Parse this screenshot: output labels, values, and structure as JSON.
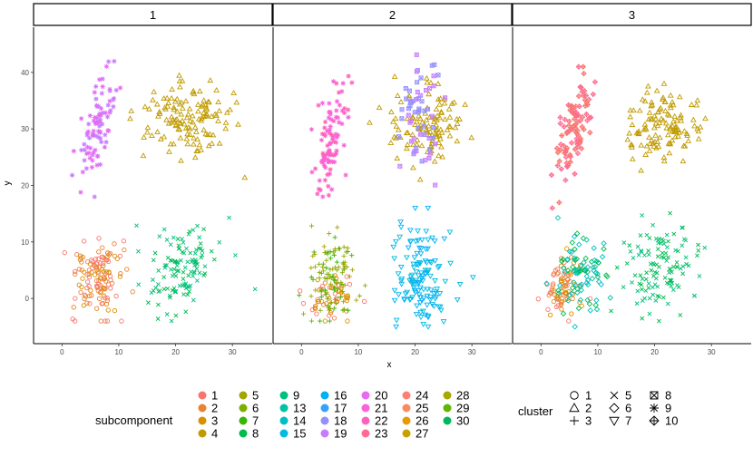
{
  "chart_data": {
    "type": "scatter",
    "facet_variable": "panel",
    "panels": [
      "1",
      "2",
      "3"
    ],
    "xlabel": "x",
    "ylabel": "y",
    "xlim": [
      -5,
      37
    ],
    "ylim": [
      -8,
      48
    ],
    "xticks": [
      0,
      10,
      20,
      30
    ],
    "yticks": [
      0,
      10,
      20,
      30,
      40
    ],
    "grid": false,
    "legend_position": "bottom",
    "color_legend": {
      "title": "subcomponent",
      "entries": [
        {
          "label": "1",
          "color": "#F8766D"
        },
        {
          "label": "2",
          "color": "#EA8331"
        },
        {
          "label": "3",
          "color": "#D89000"
        },
        {
          "label": "4",
          "color": "#C09B00"
        },
        {
          "label": "5",
          "color": "#A3A500"
        },
        {
          "label": "6",
          "color": "#7CAE00"
        },
        {
          "label": "7",
          "color": "#39B600"
        },
        {
          "label": "8",
          "color": "#00BB4E"
        },
        {
          "label": "9",
          "color": "#00BF7D"
        },
        {
          "label": "13",
          "color": "#00C1A3"
        },
        {
          "label": "14",
          "color": "#00BFC4"
        },
        {
          "label": "15",
          "color": "#00BAE0"
        },
        {
          "label": "16",
          "color": "#00B0F6"
        },
        {
          "label": "17",
          "color": "#35A2FF"
        },
        {
          "label": "18",
          "color": "#9590FF"
        },
        {
          "label": "19",
          "color": "#C77CFF"
        },
        {
          "label": "20",
          "color": "#E76BF3"
        },
        {
          "label": "21",
          "color": "#FA62DB"
        },
        {
          "label": "22",
          "color": "#FF62BC"
        },
        {
          "label": "23",
          "color": "#FF6C91"
        },
        {
          "label": "24",
          "color": "#FF7F73"
        },
        {
          "label": "25",
          "color": "#F98B62"
        },
        {
          "label": "26",
          "color": "#E89A00"
        },
        {
          "label": "27",
          "color": "#C6A100"
        },
        {
          "label": "28",
          "color": "#A7A900"
        },
        {
          "label": "29",
          "color": "#5FB500"
        },
        {
          "label": "30",
          "color": "#00B85A"
        }
      ]
    },
    "shape_legend": {
      "title": "cluster",
      "entries": [
        {
          "label": "1",
          "shape": "circle"
        },
        {
          "label": "2",
          "shape": "triangle"
        },
        {
          "label": "3",
          "shape": "plus"
        },
        {
          "label": "5",
          "shape": "cross"
        },
        {
          "label": "6",
          "shape": "diamond"
        },
        {
          "label": "7",
          "shape": "triangle-down"
        },
        {
          "label": "8",
          "shape": "square-cross"
        },
        {
          "label": "9",
          "shape": "asterisk"
        },
        {
          "label": "10",
          "shape": "diamond-plus"
        }
      ]
    },
    "clusters": [
      {
        "panel": "1",
        "cluster": "1",
        "shape": "circle",
        "color": "#D89000",
        "colors": [
          "#F8766D",
          "#EA8331",
          "#D89000"
        ],
        "center": [
          6,
          3
        ],
        "sd": [
          2.2,
          3.5
        ],
        "n": 130,
        "range_x": [
          -1,
          13
        ],
        "range_y": [
          -4,
          16
        ]
      },
      {
        "panel": "1",
        "cluster": "2",
        "shape": "triangle",
        "color": "#C09B00",
        "center": [
          22,
          31
        ],
        "sd": [
          3.5,
          3.5
        ],
        "n": 130,
        "range_x": [
          12,
          35
        ],
        "range_y": [
          18,
          43
        ]
      },
      {
        "panel": "1",
        "cluster": "5",
        "shape": "cross",
        "color": "#00BF7D",
        "colors": [
          "#00BB4E",
          "#00BF7D"
        ],
        "center": [
          21,
          5
        ],
        "sd": [
          3.2,
          4.0
        ],
        "n": 120,
        "range_x": [
          12,
          34
        ],
        "range_y": [
          -4,
          17
        ]
      },
      {
        "panel": "1",
        "cluster": "9",
        "shape": "asterisk",
        "color": "#E76BF3",
        "colors": [
          "#E76BF3",
          "#C77CFF"
        ],
        "center": [
          6,
          30
        ],
        "sd": [
          1.2,
          5.0
        ],
        "n": 90,
        "range_x": [
          1,
          12
        ],
        "range_y": [
          17,
          43
        ],
        "tilt": 1.4
      },
      {
        "panel": "2",
        "cluster": "1",
        "shape": "circle",
        "color": "#D89000",
        "colors": [
          "#D89000",
          "#F8766D"
        ],
        "center": [
          5,
          1
        ],
        "sd": [
          2.0,
          2.0
        ],
        "n": 55,
        "range_x": [
          -1,
          12
        ],
        "range_y": [
          -4,
          8
        ]
      },
      {
        "panel": "2",
        "cluster": "3",
        "shape": "plus",
        "color": "#7CAE00",
        "colors": [
          "#A3A500",
          "#7CAE00",
          "#39B600"
        ],
        "center": [
          5,
          4
        ],
        "sd": [
          2.2,
          4.0
        ],
        "n": 110,
        "range_x": [
          -1,
          12
        ],
        "range_y": [
          -4,
          18
        ]
      },
      {
        "panel": "2",
        "cluster": "2",
        "shape": "triangle",
        "color": "#C09B00",
        "center": [
          22,
          31
        ],
        "sd": [
          3.5,
          3.2
        ],
        "n": 110,
        "range_x": [
          12,
          35
        ],
        "range_y": [
          18,
          45
        ]
      },
      {
        "panel": "2",
        "cluster": "8",
        "shape": "square-cross",
        "color": "#C77CFF",
        "colors": [
          "#C77CFF",
          "#9590FF"
        ],
        "center": [
          21,
          32
        ],
        "sd": [
          1.8,
          5.0
        ],
        "n": 60,
        "range_x": [
          16,
          27
        ],
        "range_y": [
          20,
          44
        ]
      },
      {
        "panel": "2",
        "cluster": "7",
        "shape": "triangle-down",
        "color": "#00B0F6",
        "colors": [
          "#00B0F6",
          "#00BAE0"
        ],
        "center": [
          21,
          4
        ],
        "sd": [
          3.0,
          4.5
        ],
        "n": 130,
        "range_x": [
          12,
          33
        ],
        "range_y": [
          -5,
          16
        ]
      },
      {
        "panel": "2",
        "cluster": "9",
        "shape": "asterisk",
        "color": "#FF62BC",
        "colors": [
          "#FF62BC",
          "#FA62DB"
        ],
        "center": [
          5,
          28
        ],
        "sd": [
          1.1,
          4.8
        ],
        "n": 95,
        "range_x": [
          1,
          11
        ],
        "range_y": [
          16,
          42
        ],
        "tilt": 1.5
      },
      {
        "panel": "3",
        "cluster": "1",
        "shape": "circle",
        "color": "#EA8331",
        "colors": [
          "#D89000",
          "#EA8331",
          "#F8766D"
        ],
        "center": [
          4,
          2
        ],
        "sd": [
          1.6,
          2.4
        ],
        "n": 80,
        "range_x": [
          -1,
          10
        ],
        "range_y": [
          -4,
          10
        ]
      },
      {
        "panel": "3",
        "cluster": "6",
        "shape": "diamond",
        "color": "#00C1A3",
        "colors": [
          "#00C1A3",
          "#00BFC4",
          "#00BB4E"
        ],
        "center": [
          7,
          5
        ],
        "sd": [
          2.2,
          3.5
        ],
        "n": 90,
        "range_x": [
          1,
          14
        ],
        "range_y": [
          -5,
          15
        ]
      },
      {
        "panel": "3",
        "cluster": "2",
        "shape": "triangle",
        "color": "#C09B00",
        "center": [
          22,
          31
        ],
        "sd": [
          3.5,
          3.2
        ],
        "n": 120,
        "range_x": [
          12,
          35
        ],
        "range_y": [
          18,
          43
        ]
      },
      {
        "panel": "3",
        "cluster": "5",
        "shape": "cross",
        "color": "#00BF7D",
        "colors": [
          "#00BB4E",
          "#00BF7D"
        ],
        "center": [
          21,
          5
        ],
        "sd": [
          3.0,
          4.0
        ],
        "n": 120,
        "range_x": [
          12,
          34
        ],
        "range_y": [
          -4,
          18
        ]
      },
      {
        "panel": "3",
        "cluster": "10",
        "shape": "diamond-plus",
        "color": "#FF6C91",
        "colors": [
          "#FF6C91",
          "#F8766D"
        ],
        "center": [
          6,
          30
        ],
        "sd": [
          1.2,
          5.0
        ],
        "n": 100,
        "range_x": [
          1,
          12
        ],
        "range_y": [
          16,
          41
        ],
        "tilt": 1.4
      }
    ]
  }
}
